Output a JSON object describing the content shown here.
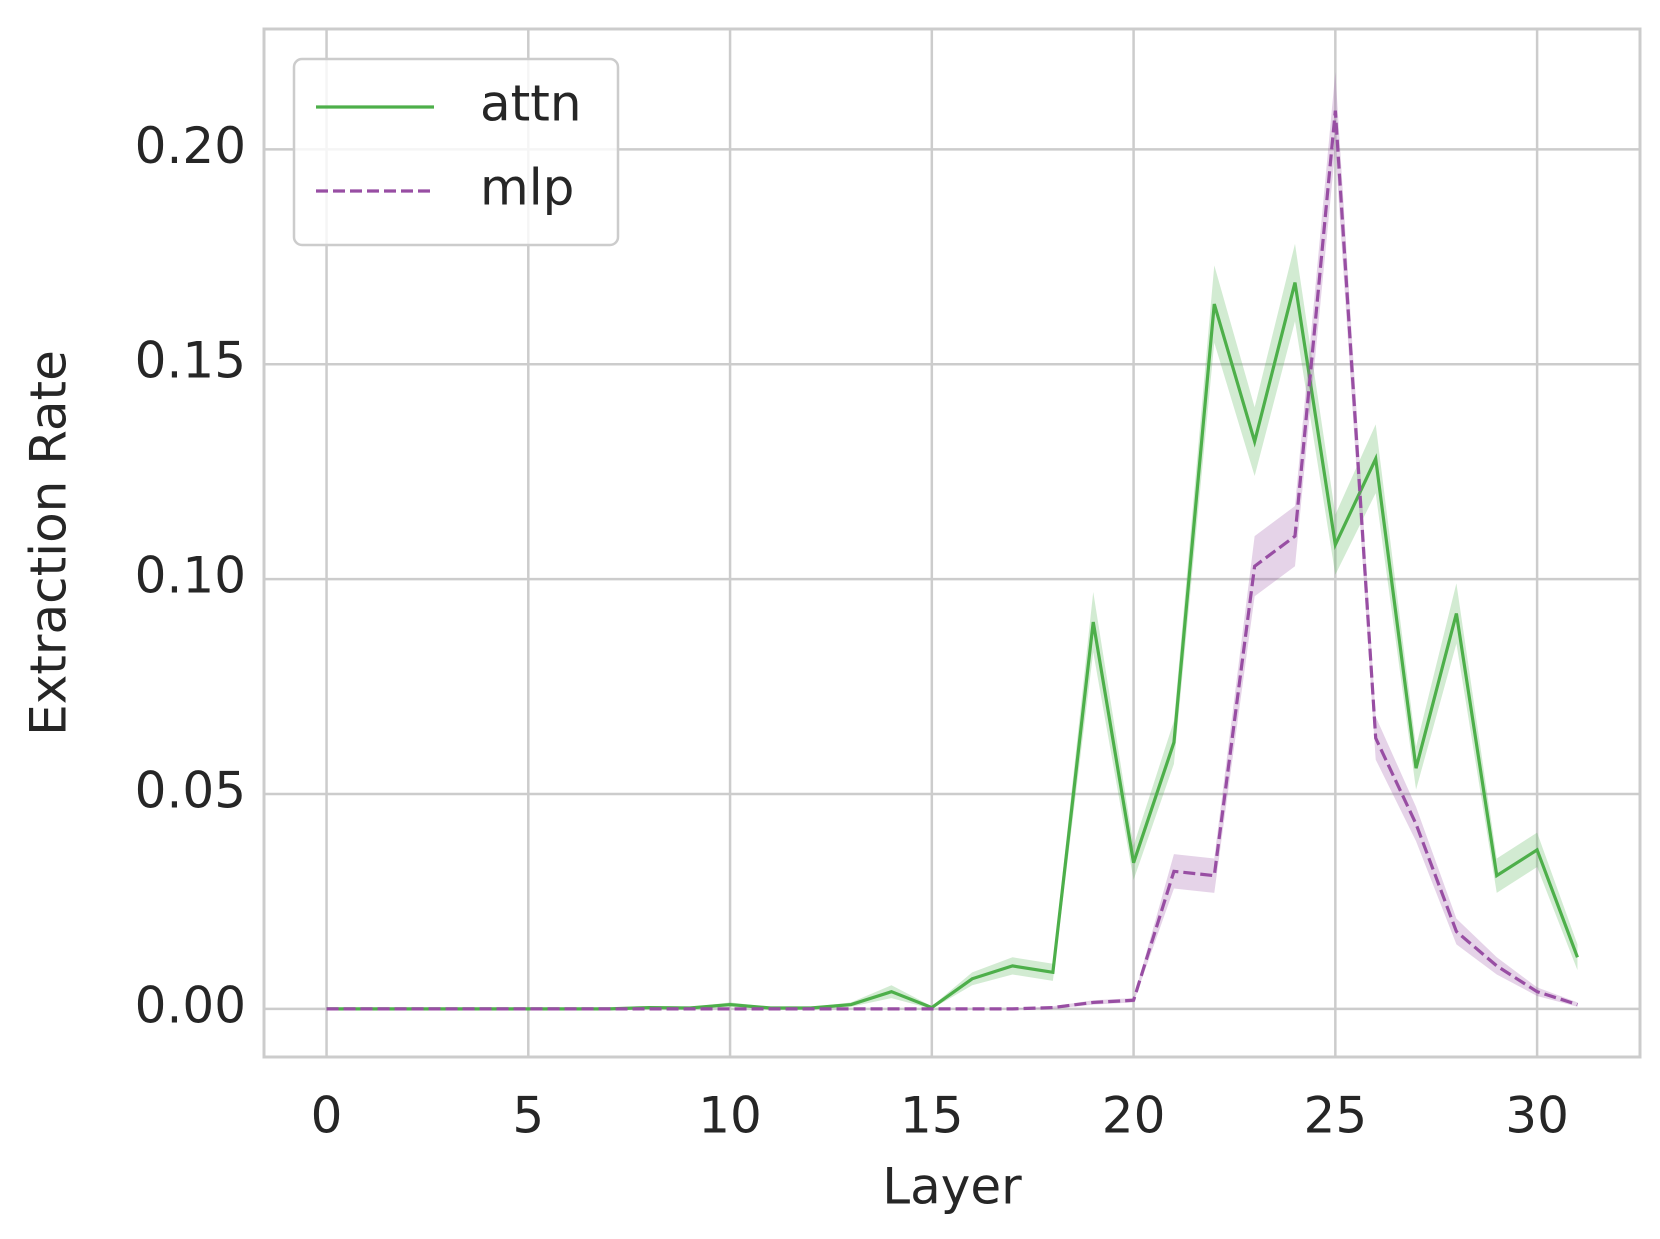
{
  "chart_data": {
    "type": "line",
    "xlabel": "Layer",
    "ylabel": "Extraction Rate",
    "x": [
      0,
      1,
      2,
      3,
      4,
      5,
      6,
      7,
      8,
      9,
      10,
      11,
      12,
      13,
      14,
      15,
      16,
      17,
      18,
      19,
      20,
      21,
      22,
      23,
      24,
      25,
      26,
      27,
      28,
      29,
      30,
      31
    ],
    "series": [
      {
        "name": "attn",
        "color": "#4daf4a",
        "linestyle": "solid",
        "values": [
          0,
          0,
          0,
          0,
          0,
          0,
          0,
          0,
          0.0003,
          0.0002,
          0.001,
          0.0002,
          0.0002,
          0.001,
          0.004,
          0.0003,
          0.007,
          0.01,
          0.0085,
          0.09,
          0.034,
          0.062,
          0.164,
          0.132,
          0.169,
          0.108,
          0.128,
          0.056,
          0.092,
          0.031,
          0.037,
          0.012
        ],
        "ci_lower": [
          0,
          0,
          0,
          0,
          0,
          0,
          0,
          0,
          0,
          0,
          0.0005,
          0,
          0,
          0.0005,
          0.0025,
          0,
          0.0055,
          0.008,
          0.0065,
          0.083,
          0.03,
          0.057,
          0.155,
          0.124,
          0.16,
          0.101,
          0.12,
          0.051,
          0.085,
          0.027,
          0.033,
          0.009
        ],
        "ci_upper": [
          0,
          0,
          0,
          0,
          0,
          0,
          0,
          0,
          0.0006,
          0.0004,
          0.0015,
          0.0004,
          0.0004,
          0.0015,
          0.0055,
          0.0006,
          0.0085,
          0.012,
          0.0105,
          0.097,
          0.038,
          0.067,
          0.173,
          0.14,
          0.178,
          0.115,
          0.136,
          0.061,
          0.099,
          0.035,
          0.041,
          0.015
        ]
      },
      {
        "name": "mlp",
        "color": "#984ea3",
        "linestyle": "dashed",
        "values": [
          0,
          0,
          0,
          0,
          0,
          0,
          0,
          0,
          0,
          0,
          0,
          0,
          0,
          0,
          0,
          0,
          0,
          0,
          0.0003,
          0.0015,
          0.002,
          0.032,
          0.031,
          0.103,
          0.11,
          0.209,
          0.063,
          0.043,
          0.018,
          0.01,
          0.004,
          0.001
        ],
        "ci_lower": [
          0,
          0,
          0,
          0,
          0,
          0,
          0,
          0,
          0,
          0,
          0,
          0,
          0,
          0,
          0,
          0,
          0,
          0,
          0,
          0.001,
          0.0015,
          0.028,
          0.027,
          0.096,
          0.103,
          0.2,
          0.058,
          0.039,
          0.015,
          0.008,
          0.003,
          0.0005
        ],
        "ci_upper": [
          0,
          0,
          0,
          0,
          0,
          0,
          0,
          0,
          0,
          0,
          0,
          0,
          0,
          0,
          0,
          0,
          0,
          0,
          0.0006,
          0.002,
          0.0025,
          0.036,
          0.035,
          0.11,
          0.117,
          0.218,
          0.068,
          0.047,
          0.021,
          0.012,
          0.005,
          0.0015
        ]
      }
    ],
    "xlim": [
      -1.55,
      32.55
    ],
    "ylim": [
      -0.0112,
      0.228
    ],
    "xticks": [
      0,
      5,
      10,
      15,
      20,
      25,
      30
    ],
    "yticks": [
      {
        "value": 0,
        "label": "0.00"
      },
      {
        "value": 0.05,
        "label": "0.05"
      },
      {
        "value": 0.1,
        "label": "0.10"
      },
      {
        "value": 0.15,
        "label": "0.15"
      },
      {
        "value": 0.2,
        "label": "0.20"
      }
    ],
    "grid": true,
    "legend_loc": "upper left"
  }
}
